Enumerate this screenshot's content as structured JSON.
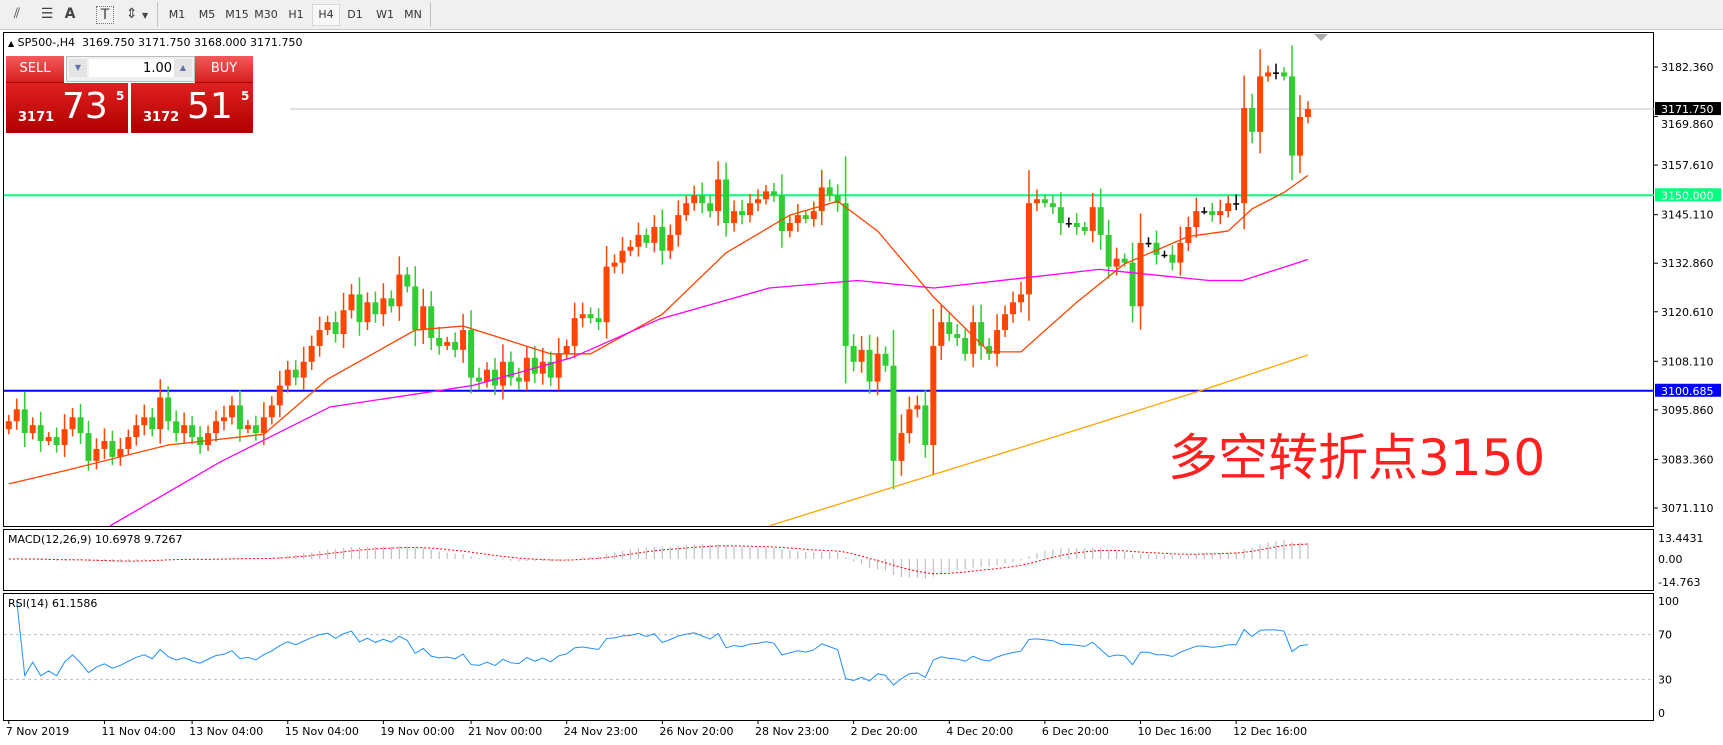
{
  "toolbar": {
    "icons": [
      "elliott-wave-icon",
      "fibonacci-fan-icon",
      "text-icon",
      "text-label-icon",
      "arrows-icon"
    ],
    "icon_glyphs": [
      "⫽",
      "☰",
      "A",
      "T",
      "⇕"
    ],
    "timeframes": [
      "M1",
      "M5",
      "M15",
      "M30",
      "H1",
      "H4",
      "D1",
      "W1",
      "MN"
    ],
    "selected_timeframe": "H4"
  },
  "header": {
    "symbol": "SP500-,H4",
    "ohlc": "3169.750 3171.750 3168.000 3171.750"
  },
  "trade_panel": {
    "sell_label": "SELL",
    "buy_label": "BUY",
    "lot": "1.00",
    "sell_price": {
      "prefix": "3171",
      "big": "73",
      "sup": "5"
    },
    "buy_price": {
      "prefix": "3172",
      "big": "51",
      "sup": "5"
    }
  },
  "annotation": "多空转折点3150",
  "colors": {
    "up_candle": "#ff4500",
    "down_candle": "#32cd32",
    "doji": "#000000",
    "ma_fast": "#ff4500",
    "ma_mid": "#ff00ff",
    "ma_slow": "#ffa500",
    "level_3150": "#00ff7f",
    "level_3100": "#0000ff",
    "macd_signal": "#ff0000",
    "macd_hist": "#c0c0c0",
    "rsi": "#1e90ff"
  },
  "chart_data": [
    {
      "type": "candlestick",
      "title": "SP500-,H4",
      "ylim": [
        3066,
        3190
      ],
      "y_ticks": [
        "3182.360",
        "3169.860",
        "3157.610",
        "3145.110",
        "3132.860",
        "3120.610",
        "3108.110",
        "3095.860",
        "3083.360",
        "3071.110"
      ],
      "x_tick_labels": [
        {
          "bar": 0,
          "label": "7 Nov 2019"
        },
        {
          "bar": 12,
          "label": "11 Nov 04:00"
        },
        {
          "bar": 23,
          "label": "13 Nov 04:00"
        },
        {
          "bar": 35,
          "label": "15 Nov 04:00"
        },
        {
          "bar": 47,
          "label": "19 Nov 00:00"
        },
        {
          "bar": 58,
          "label": "21 Nov 00:00"
        },
        {
          "bar": 70,
          "label": "24 Nov 23:00"
        },
        {
          "bar": 82,
          "label": "26 Nov 20:00"
        },
        {
          "bar": 94,
          "label": "28 Nov 23:00"
        },
        {
          "bar": 106,
          "label": "2 Dec 20:00"
        },
        {
          "bar": 118,
          "label": "4 Dec 20:00"
        },
        {
          "bar": 130,
          "label": "6 Dec 20:00"
        },
        {
          "bar": 142,
          "label": "10 Dec 16:00"
        },
        {
          "bar": 154,
          "label": "12 Dec 16:00"
        }
      ],
      "first_open": 3091,
      "close": [
        3093,
        3096,
        3090,
        3092,
        3088,
        3089,
        3087,
        3091,
        3094,
        3090,
        3083,
        3086,
        3088,
        3084,
        3086,
        3089,
        3092,
        3094,
        3091,
        3099,
        3093,
        3090,
        3092,
        3089,
        3087,
        3090,
        3093,
        3094,
        3097,
        3091,
        3092,
        3090,
        3094,
        3097,
        3102,
        3106,
        3104,
        3108,
        3112,
        3116,
        3118,
        3115,
        3121,
        3125,
        3118,
        3123,
        3120,
        3124,
        3122,
        3130,
        3127,
        3116,
        3122,
        3114,
        3112,
        3113,
        3111,
        3116,
        3104,
        3103,
        3106,
        3102,
        3108,
        3104,
        3103,
        3109,
        3105,
        3108,
        3104,
        3110,
        3112,
        3119,
        3120,
        3119,
        3118,
        3132,
        3133,
        3136,
        3137,
        3140,
        3138,
        3142,
        3136,
        3140,
        3145,
        3148,
        3150,
        3148,
        3146,
        3154,
        3143,
        3146,
        3145,
        3148,
        3149,
        3151,
        3150,
        3141,
        3143,
        3145,
        3144,
        3146,
        3152,
        3150,
        3148,
        3112,
        3108,
        3111,
        3103,
        3110,
        3107,
        3083,
        3090,
        3096,
        3097,
        3087,
        3112,
        3118,
        3115,
        3114,
        3110,
        3118,
        3112,
        3110,
        3116,
        3120,
        3123,
        3125,
        3148,
        3149,
        3148,
        3147,
        3143,
        3143,
        3142,
        3141,
        3147,
        3140,
        3132,
        3134,
        3133,
        3122,
        3138,
        3138,
        3135,
        3135,
        3133,
        3138,
        3142,
        3146,
        3146,
        3145,
        3146,
        3148,
        3148,
        3172,
        3166,
        3180,
        3181,
        3181,
        3180,
        3160,
        3169.75,
        3171.75
      ],
      "moving_averages": [
        {
          "key": "ma_fast",
          "points": [
            [
              0,
              3077.2
            ],
            [
              7,
              3080.5
            ],
            [
              20,
              3087
            ],
            [
              32,
              3089.7
            ],
            [
              40,
              3103.6
            ],
            [
              51,
              3116
            ],
            [
              57,
              3117
            ],
            [
              68,
              3110
            ],
            [
              73,
              3110
            ],
            [
              82,
              3120
            ],
            [
              90,
              3135.5
            ],
            [
              98,
              3145
            ],
            [
              104,
              3148.5
            ],
            [
              109,
              3141
            ],
            [
              116,
              3124.4
            ],
            [
              123,
              3110.5
            ],
            [
              127,
              3110.5
            ],
            [
              134,
              3123
            ],
            [
              140,
              3132.7
            ],
            [
              148,
              3139.6
            ],
            [
              153,
              3141
            ],
            [
              156,
              3146.6
            ],
            [
              160,
              3150.7
            ],
            [
              163,
              3155
            ]
          ]
        },
        {
          "key": "ma_mid",
          "points": [
            [
              12.7,
              3066.6
            ],
            [
              26.5,
              3082.7
            ],
            [
              40.3,
              3096.6
            ],
            [
              58.2,
              3102
            ],
            [
              70.6,
              3109
            ],
            [
              81.7,
              3118.8
            ],
            [
              95.4,
              3126.6
            ],
            [
              106.5,
              3128.5
            ],
            [
              116.1,
              3126.6
            ],
            [
              136.8,
              3131.3
            ],
            [
              150.6,
              3128.5
            ],
            [
              154.8,
              3128.5
            ],
            [
              163,
              3133.8
            ]
          ]
        },
        {
          "key": "ma_slow",
          "points": [
            [
              95.4,
              3066.6
            ],
            [
              130,
              3088.3
            ],
            [
              150,
              3101
            ],
            [
              163,
              3109.7
            ]
          ]
        }
      ],
      "levels": [
        {
          "value": 3150.0,
          "label": "3150.000",
          "key": "level_3150"
        },
        {
          "value": 3100.685,
          "label": "3100.685",
          "key": "level_3100"
        }
      ],
      "current_price": {
        "value": 3171.75,
        "label": "3171.750"
      }
    },
    {
      "type": "bar",
      "title": "MACD(12,26,9) 10.6978 9.7267",
      "y_ticks": [
        "13.4431",
        "0.00",
        "-14.763"
      ],
      "ylim": [
        -14.763,
        13.4431
      ],
      "params": [
        12,
        26,
        9
      ]
    },
    {
      "type": "line",
      "title": "RSI(14) 61.1586",
      "y_ticks": [
        "100",
        "70",
        "30",
        "0"
      ],
      "ylim": [
        0,
        100
      ],
      "levels": [
        70,
        30
      ],
      "period": 14
    }
  ]
}
